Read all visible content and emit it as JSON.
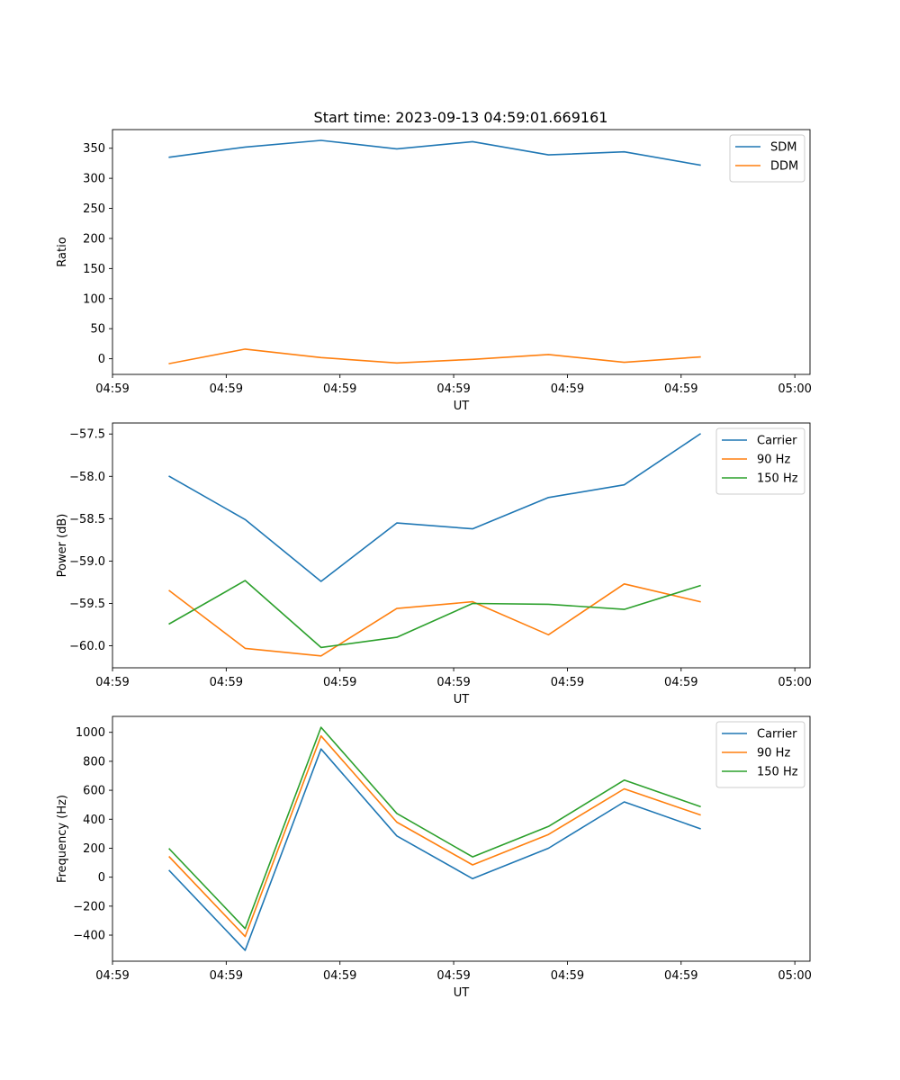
{
  "figure_title": "Start time: 2023-09-13 04:59:01.669161",
  "colors": {
    "c0": "#1f77b4",
    "c1": "#ff7f0e",
    "c2": "#2ca02c"
  },
  "chart_data": [
    {
      "type": "line",
      "title": "Start time: 2023-09-13 04:59:01.669161",
      "xlabel": "UT",
      "ylabel": "Ratio",
      "x": [
        0,
        1,
        2,
        3,
        4,
        5,
        6,
        7
      ],
      "xlim": [
        -0.75,
        8.45
      ],
      "xticks": [
        -0.75,
        0.75,
        2.25,
        3.75,
        5.25,
        6.75,
        8.25
      ],
      "xtick_labels": [
        "04:59",
        "04:59",
        "04:59",
        "04:59",
        "04:59",
        "04:59",
        "05:00"
      ],
      "ylim": [
        -26,
        381
      ],
      "yticks": [
        0,
        50,
        100,
        150,
        200,
        250,
        300,
        350
      ],
      "ytick_labels": [
        "0",
        "50",
        "100",
        "150",
        "200",
        "250",
        "300",
        "350"
      ],
      "legend": "top-right",
      "series": [
        {
          "name": "SDM",
          "color": "#1f77b4",
          "values": [
            335,
            352,
            363,
            349,
            361,
            339,
            344,
            322
          ]
        },
        {
          "name": "DDM",
          "color": "#ff7f0e",
          "values": [
            -8,
            16,
            2,
            -7,
            -1,
            7,
            -6,
            3
          ]
        }
      ]
    },
    {
      "type": "line",
      "xlabel": "UT",
      "ylabel": "Power (dB)",
      "x": [
        0,
        1,
        2,
        3,
        4,
        5,
        6,
        7
      ],
      "xlim": [
        -0.75,
        8.45
      ],
      "xticks": [
        -0.75,
        0.75,
        2.25,
        3.75,
        5.25,
        6.75,
        8.25
      ],
      "xtick_labels": [
        "04:59",
        "04:59",
        "04:59",
        "04:59",
        "04:59",
        "04:59",
        "05:00"
      ],
      "ylim": [
        -60.26,
        -57.37
      ],
      "yticks": [
        -60.0,
        -59.5,
        -59.0,
        -58.5,
        -58.0,
        -57.5
      ],
      "ytick_labels": [
        "−60.0",
        "−59.5",
        "−59.0",
        "−58.5",
        "−58.0",
        "−57.5"
      ],
      "legend": "top-right",
      "series": [
        {
          "name": "Carrier",
          "color": "#1f77b4",
          "values": [
            -58.0,
            -58.51,
            -59.24,
            -58.55,
            -58.62,
            -58.25,
            -58.1,
            -57.5
          ]
        },
        {
          "name": "90 Hz",
          "color": "#ff7f0e",
          "values": [
            -59.35,
            -60.03,
            -60.12,
            -59.56,
            -59.48,
            -59.87,
            -59.27,
            -59.48
          ]
        },
        {
          "name": "150 Hz",
          "color": "#2ca02c",
          "values": [
            -59.74,
            -59.23,
            -60.02,
            -59.9,
            -59.5,
            -59.51,
            -59.57,
            -59.29
          ]
        }
      ]
    },
    {
      "type": "line",
      "xlabel": "UT",
      "ylabel": "Frequency (Hz)",
      "x": [
        0,
        1,
        2,
        3,
        4,
        5,
        6,
        7
      ],
      "xlim": [
        -0.75,
        8.45
      ],
      "xticks": [
        -0.75,
        0.75,
        2.25,
        3.75,
        5.25,
        6.75,
        8.25
      ],
      "xtick_labels": [
        "04:59",
        "04:59",
        "04:59",
        "04:59",
        "04:59",
        "04:59",
        "05:00"
      ],
      "ylim": [
        -580,
        1110
      ],
      "yticks": [
        -400,
        -200,
        0,
        200,
        400,
        600,
        800,
        1000
      ],
      "ytick_labels": [
        "−400",
        "−200",
        "0",
        "200",
        "400",
        "600",
        "800",
        "1000"
      ],
      "legend": "top-right",
      "series": [
        {
          "name": "Carrier",
          "color": "#1f77b4",
          "values": [
            45,
            -505,
            885,
            285,
            -10,
            200,
            520,
            335
          ]
        },
        {
          "name": "90 Hz",
          "color": "#ff7f0e",
          "values": [
            140,
            -410,
            975,
            380,
            85,
            295,
            610,
            430
          ]
        },
        {
          "name": "150 Hz",
          "color": "#2ca02c",
          "values": [
            195,
            -355,
            1035,
            440,
            140,
            350,
            670,
            488
          ]
        }
      ]
    }
  ]
}
